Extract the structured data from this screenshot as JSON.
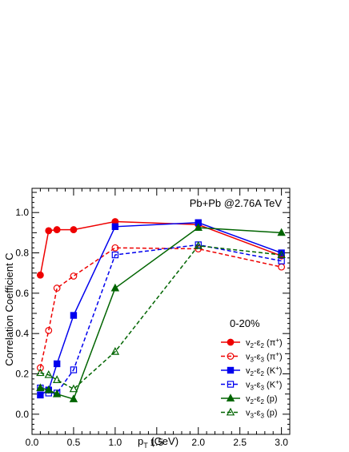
{
  "chart_data": {
    "type": "line",
    "title": "",
    "annotation": "Pb+Pb @2.76A TeV",
    "centrality_label": "0-20%",
    "xlabel": "p_T (GeV)",
    "xlabel_main": "p",
    "xlabel_sub": "T",
    "xlabel_unit": " (GeV)",
    "ylabel": "Correlation Coefficient C",
    "xlim": [
      0.0,
      3.1
    ],
    "ylim": [
      -0.1,
      1.12
    ],
    "x_ticks": [
      "0.0",
      "0.5",
      "1.0",
      "1.5",
      "2.0",
      "2.5",
      "3.0"
    ],
    "x_tick_values": [
      0.0,
      0.5,
      1.0,
      1.5,
      2.0,
      2.5,
      3.0
    ],
    "y_ticks": [
      "0.0",
      "0.2",
      "0.4",
      "0.6",
      "0.8",
      "1.0"
    ],
    "y_tick_values": [
      0.0,
      0.2,
      0.4,
      0.6,
      0.8,
      1.0
    ],
    "grid": false,
    "legend_position": "lower-right",
    "series": [
      {
        "label": "v2-ε2 (π+)",
        "legend": {
          "a": "v",
          "asub": "2",
          "dash": "-ε",
          "bsub": "2",
          "part": "π",
          "sup": "+"
        },
        "color": "#ee0000",
        "marker": "circle",
        "filled": true,
        "dashed": false,
        "x": [
          0.1,
          0.2,
          0.3,
          0.5,
          1.0,
          2.0,
          3.0
        ],
        "y": [
          0.69,
          0.91,
          0.915,
          0.915,
          0.955,
          0.94,
          0.785
        ]
      },
      {
        "label": "v3-ε3 (π+)",
        "legend": {
          "a": "v",
          "asub": "3",
          "dash": "-ε",
          "bsub": "3",
          "part": "π",
          "sup": "+"
        },
        "color": "#ee0000",
        "marker": "circle",
        "filled": false,
        "dashed": true,
        "x": [
          0.1,
          0.2,
          0.3,
          0.5,
          1.0,
          2.0,
          3.0
        ],
        "y": [
          0.23,
          0.415,
          0.625,
          0.685,
          0.825,
          0.82,
          0.73
        ]
      },
      {
        "label": "v2-ε2 (K+)",
        "legend": {
          "a": "v",
          "asub": "2",
          "dash": "-ε",
          "bsub": "2",
          "part": "K",
          "sup": "+"
        },
        "color": "#0000ee",
        "marker": "square",
        "filled": true,
        "dashed": false,
        "x": [
          0.1,
          0.2,
          0.3,
          0.5,
          1.0,
          2.0,
          3.0
        ],
        "y": [
          0.095,
          0.12,
          0.25,
          0.49,
          0.93,
          0.95,
          0.8
        ]
      },
      {
        "label": "v3-ε3 (K+)",
        "legend": {
          "a": "v",
          "asub": "3",
          "dash": "-ε",
          "bsub": "3",
          "part": "K",
          "sup": "+"
        },
        "color": "#0000ee",
        "marker": "square",
        "filled": false,
        "dashed": true,
        "x": [
          0.1,
          0.2,
          0.3,
          0.5,
          1.0,
          2.0,
          3.0
        ],
        "y": [
          0.13,
          0.105,
          0.105,
          0.22,
          0.79,
          0.84,
          0.76
        ]
      },
      {
        "label": "v2-ε2 (p)",
        "legend": {
          "a": "v",
          "asub": "2",
          "dash": "-ε",
          "bsub": "2",
          "part": "p",
          "sup": ""
        },
        "color": "#006400",
        "marker": "triangle",
        "filled": true,
        "dashed": false,
        "x": [
          0.1,
          0.2,
          0.3,
          0.5,
          1.0,
          2.0,
          3.0
        ],
        "y": [
          0.13,
          0.12,
          0.1,
          0.075,
          0.625,
          0.925,
          0.9
        ]
      },
      {
        "label": "v3-ε3 (p)",
        "legend": {
          "a": "v",
          "asub": "3",
          "dash": "-ε",
          "bsub": "3",
          "part": "p",
          "sup": ""
        },
        "color": "#006400",
        "marker": "triangle",
        "filled": false,
        "dashed": true,
        "x": [
          0.1,
          0.2,
          0.3,
          0.5,
          1.0,
          2.0,
          3.0
        ],
        "y": [
          0.205,
          0.195,
          0.17,
          0.125,
          0.31,
          0.835,
          0.79
        ]
      }
    ]
  }
}
